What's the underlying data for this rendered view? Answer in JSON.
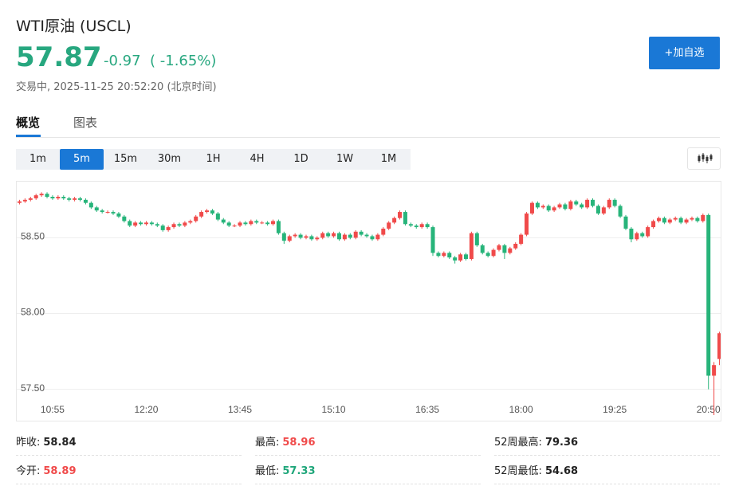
{
  "header": {
    "title": "WTI原油 (USCL)",
    "price": "57.87",
    "change": "-0.97",
    "change_pct": "( -1.65%)",
    "status": "交易中, 2025-11-25 20:52:20 (北京时间)",
    "button": "+加自选"
  },
  "tabs": [
    "概览",
    "图表"
  ],
  "intervals": [
    "1m",
    "5m",
    "15m",
    "30m",
    "1H",
    "4H",
    "1D",
    "1W",
    "1M"
  ],
  "chart_data": {
    "type": "candlestick",
    "up_color": "#f04a4a",
    "down_color": "#27b47a",
    "grid": true,
    "xlim": [
      0,
      128
    ],
    "xticks": [
      {
        "value": 6.5,
        "label": "10:55"
      },
      {
        "value": 23.5,
        "label": "12:20"
      },
      {
        "value": 40.5,
        "label": "13:45"
      },
      {
        "value": 57.5,
        "label": "15:10"
      },
      {
        "value": 74.5,
        "label": "16:35"
      },
      {
        "value": 91.5,
        "label": "18:00"
      },
      {
        "value": 108.5,
        "label": "19:25"
      },
      {
        "value": 125.5,
        "label": "20:50"
      }
    ],
    "ylim": [
      57.33,
      58.87
    ],
    "yticks": [
      {
        "value": 57.5,
        "label": "57.50"
      },
      {
        "value": 58,
        "label": "58.00"
      },
      {
        "value": 58.5,
        "label": "58.50"
      }
    ],
    "ohlc": [
      [
        58.73,
        58.75,
        58.72,
        58.74
      ],
      [
        58.74,
        58.76,
        58.73,
        58.75
      ],
      [
        58.75,
        58.77,
        58.74,
        58.76
      ],
      [
        58.76,
        58.79,
        58.75,
        58.78
      ],
      [
        58.78,
        58.8,
        58.77,
        58.79
      ],
      [
        58.79,
        58.8,
        58.76,
        58.77
      ],
      [
        58.77,
        58.78,
        58.75,
        58.76
      ],
      [
        58.76,
        58.78,
        58.75,
        58.77
      ],
      [
        58.77,
        58.78,
        58.75,
        58.76
      ],
      [
        58.76,
        58.77,
        58.74,
        58.75
      ],
      [
        58.75,
        58.77,
        58.74,
        58.76
      ],
      [
        58.76,
        58.77,
        58.74,
        58.75
      ],
      [
        58.75,
        58.76,
        58.72,
        58.73
      ],
      [
        58.73,
        58.74,
        58.69,
        58.7
      ],
      [
        58.7,
        58.71,
        58.67,
        58.68
      ],
      [
        58.68,
        58.69,
        58.66,
        58.67
      ],
      [
        58.67,
        58.68,
        58.66,
        58.67
      ],
      [
        58.67,
        58.68,
        58.65,
        58.66
      ],
      [
        58.66,
        58.67,
        58.63,
        58.64
      ],
      [
        58.64,
        58.65,
        58.6,
        58.61
      ],
      [
        58.61,
        58.62,
        58.57,
        58.58
      ],
      [
        58.58,
        58.61,
        58.57,
        58.6
      ],
      [
        58.6,
        58.61,
        58.58,
        58.59
      ],
      [
        58.59,
        58.61,
        58.58,
        58.6
      ],
      [
        58.6,
        58.61,
        58.58,
        58.59
      ],
      [
        58.59,
        58.6,
        58.57,
        58.58
      ],
      [
        58.58,
        58.59,
        58.54,
        58.55
      ],
      [
        58.55,
        58.58,
        58.54,
        58.57
      ],
      [
        58.57,
        58.6,
        58.56,
        58.59
      ],
      [
        58.59,
        58.6,
        58.57,
        58.58
      ],
      [
        58.58,
        58.61,
        58.57,
        58.6
      ],
      [
        58.6,
        58.62,
        58.59,
        58.61
      ],
      [
        58.61,
        58.65,
        58.6,
        58.64
      ],
      [
        58.64,
        58.68,
        58.63,
        58.67
      ],
      [
        58.67,
        58.69,
        58.66,
        58.68
      ],
      [
        58.68,
        58.69,
        58.65,
        58.66
      ],
      [
        58.66,
        58.67,
        58.61,
        58.62
      ],
      [
        58.62,
        58.63,
        58.59,
        58.6
      ],
      [
        58.6,
        58.61,
        58.57,
        58.58
      ],
      [
        58.58,
        58.59,
        58.57,
        58.58
      ],
      [
        58.58,
        58.61,
        58.57,
        58.6
      ],
      [
        58.6,
        58.61,
        58.58,
        58.59
      ],
      [
        58.59,
        58.62,
        58.58,
        58.61
      ],
      [
        58.61,
        58.62,
        58.59,
        58.6
      ],
      [
        58.6,
        58.61,
        58.59,
        58.6
      ],
      [
        58.6,
        58.61,
        58.58,
        58.59
      ],
      [
        58.59,
        58.62,
        58.58,
        58.61
      ],
      [
        58.61,
        58.62,
        58.52,
        58.53
      ],
      [
        58.53,
        58.54,
        58.46,
        58.48
      ],
      [
        58.48,
        58.52,
        58.47,
        58.51
      ],
      [
        58.51,
        58.53,
        58.5,
        58.52
      ],
      [
        58.52,
        58.53,
        58.49,
        58.5
      ],
      [
        58.5,
        58.52,
        58.49,
        58.51
      ],
      [
        58.51,
        58.52,
        58.48,
        58.49
      ],
      [
        58.49,
        58.51,
        58.48,
        58.5
      ],
      [
        58.5,
        58.54,
        58.49,
        58.53
      ],
      [
        58.53,
        58.54,
        58.5,
        58.51
      ],
      [
        58.51,
        58.54,
        58.5,
        58.53
      ],
      [
        58.53,
        58.54,
        58.48,
        58.49
      ],
      [
        58.49,
        58.53,
        58.48,
        58.52
      ],
      [
        58.52,
        58.53,
        58.49,
        58.5
      ],
      [
        58.5,
        58.55,
        58.49,
        58.54
      ],
      [
        58.54,
        58.55,
        58.51,
        58.52
      ],
      [
        58.52,
        58.53,
        58.5,
        58.51
      ],
      [
        58.51,
        58.52,
        58.48,
        58.49
      ],
      [
        58.49,
        58.53,
        58.48,
        58.52
      ],
      [
        58.52,
        58.57,
        58.51,
        58.56
      ],
      [
        58.56,
        58.61,
        58.55,
        58.6
      ],
      [
        58.6,
        58.64,
        58.59,
        58.63
      ],
      [
        58.63,
        58.68,
        58.62,
        58.67
      ],
      [
        58.67,
        58.68,
        58.58,
        58.59
      ],
      [
        58.59,
        58.6,
        58.57,
        58.58
      ],
      [
        58.58,
        58.59,
        58.56,
        58.57
      ],
      [
        58.57,
        58.6,
        58.56,
        58.59
      ],
      [
        58.59,
        58.6,
        58.56,
        58.57
      ],
      [
        58.57,
        58.58,
        58.38,
        58.4
      ],
      [
        58.4,
        58.41,
        58.37,
        58.38
      ],
      [
        58.38,
        58.41,
        58.37,
        58.4
      ],
      [
        58.4,
        58.41,
        58.36,
        58.37
      ],
      [
        58.37,
        58.38,
        58.33,
        58.35
      ],
      [
        58.35,
        58.4,
        58.34,
        58.39
      ],
      [
        58.39,
        58.4,
        58.35,
        58.36
      ],
      [
        58.36,
        58.54,
        58.35,
        58.53
      ],
      [
        58.53,
        58.54,
        58.44,
        58.45
      ],
      [
        58.45,
        58.46,
        58.39,
        58.4
      ],
      [
        58.4,
        58.41,
        58.37,
        58.38
      ],
      [
        58.38,
        58.43,
        58.37,
        58.42
      ],
      [
        58.42,
        58.46,
        58.41,
        58.45
      ],
      [
        58.45,
        58.46,
        58.36,
        58.4
      ],
      [
        58.4,
        58.44,
        58.39,
        58.43
      ],
      [
        58.43,
        58.47,
        58.42,
        58.46
      ],
      [
        58.46,
        58.53,
        58.45,
        58.52
      ],
      [
        58.52,
        58.67,
        58.51,
        58.66
      ],
      [
        58.66,
        58.74,
        58.65,
        58.73
      ],
      [
        58.73,
        58.74,
        58.69,
        58.7
      ],
      [
        58.7,
        58.72,
        58.69,
        58.71
      ],
      [
        58.71,
        58.72,
        58.67,
        58.68
      ],
      [
        58.68,
        58.71,
        58.67,
        58.7
      ],
      [
        58.7,
        58.73,
        58.69,
        58.72
      ],
      [
        58.72,
        58.73,
        58.68,
        58.69
      ],
      [
        58.69,
        58.75,
        58.68,
        58.74
      ],
      [
        58.74,
        58.75,
        58.71,
        58.72
      ],
      [
        58.72,
        58.73,
        58.69,
        58.7
      ],
      [
        58.7,
        58.76,
        58.69,
        58.75
      ],
      [
        58.75,
        58.76,
        58.7,
        58.71
      ],
      [
        58.71,
        58.72,
        58.65,
        58.66
      ],
      [
        58.66,
        58.71,
        58.65,
        58.7
      ],
      [
        58.7,
        58.76,
        58.69,
        58.75
      ],
      [
        58.75,
        58.76,
        58.7,
        58.71
      ],
      [
        58.71,
        58.72,
        58.63,
        58.64
      ],
      [
        58.64,
        58.65,
        58.55,
        58.56
      ],
      [
        58.56,
        58.57,
        58.47,
        58.49
      ],
      [
        58.49,
        58.54,
        58.48,
        58.53
      ],
      [
        58.53,
        58.54,
        58.5,
        58.51
      ],
      [
        58.51,
        58.58,
        58.5,
        58.57
      ],
      [
        58.57,
        58.62,
        58.56,
        58.61
      ],
      [
        58.61,
        58.64,
        58.6,
        58.63
      ],
      [
        58.63,
        58.64,
        58.59,
        58.6
      ],
      [
        58.6,
        58.63,
        58.59,
        58.62
      ],
      [
        58.62,
        58.64,
        58.61,
        58.63
      ],
      [
        58.63,
        58.64,
        58.59,
        58.6
      ],
      [
        58.6,
        58.63,
        58.59,
        58.62
      ],
      [
        58.62,
        58.64,
        58.61,
        58.63
      ],
      [
        58.63,
        58.64,
        58.6,
        58.61
      ],
      [
        58.61,
        58.66,
        58.6,
        58.65
      ],
      [
        58.65,
        58.66,
        57.5,
        57.59
      ],
      [
        57.59,
        57.68,
        57.33,
        57.66
      ],
      [
        57.7,
        57.88,
        57.66,
        57.87
      ]
    ]
  },
  "stats": [
    [
      {
        "label": "昨收:",
        "value": "58.84"
      },
      {
        "label": "最高:",
        "value": "58.96"
      },
      {
        "label": "52周最高:",
        "value": "79.36"
      }
    ],
    [
      {
        "label": "今开:",
        "value": "58.89"
      },
      {
        "label": "最低:",
        "value": "57.33"
      },
      {
        "label": "52周最低:",
        "value": "54.68"
      }
    ]
  ]
}
